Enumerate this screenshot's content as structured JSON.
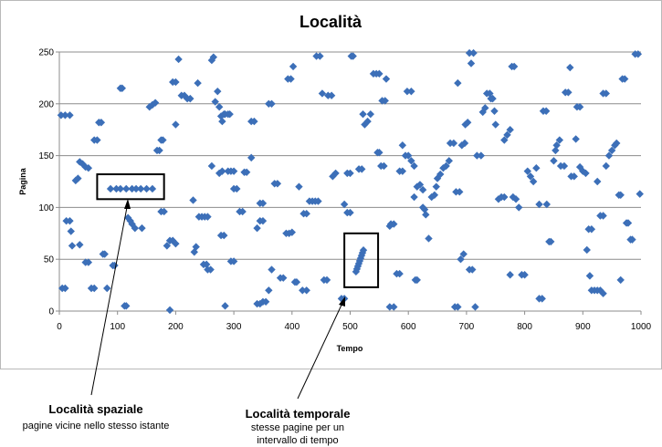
{
  "chart_data": {
    "type": "scatter",
    "title": "Località",
    "xlabel": "Tempo",
    "ylabel": "Pagina",
    "xlim": [
      0,
      1000
    ],
    "ylim": [
      0,
      250
    ],
    "xticks": [
      0,
      100,
      200,
      300,
      400,
      500,
      600,
      700,
      800,
      900,
      1000
    ],
    "yticks": [
      0,
      50,
      100,
      150,
      200,
      250
    ],
    "grid": "horizontal",
    "marker": "diamond",
    "color": "#3c6fb8",
    "points": [
      [
        3,
        189
      ],
      [
        10,
        189
      ],
      [
        18,
        189
      ],
      [
        5,
        22
      ],
      [
        10,
        22
      ],
      [
        12,
        87
      ],
      [
        18,
        87
      ],
      [
        20,
        77
      ],
      [
        22,
        63
      ],
      [
        28,
        126
      ],
      [
        32,
        128
      ],
      [
        35,
        144
      ],
      [
        40,
        142
      ],
      [
        45,
        139
      ],
      [
        50,
        138
      ],
      [
        35,
        64
      ],
      [
        45,
        47
      ],
      [
        50,
        47
      ],
      [
        55,
        22
      ],
      [
        60,
        22
      ],
      [
        60,
        165
      ],
      [
        65,
        165
      ],
      [
        68,
        182
      ],
      [
        72,
        182
      ],
      [
        75,
        55
      ],
      [
        78,
        55
      ],
      [
        82,
        22
      ],
      [
        88,
        118
      ],
      [
        98,
        118
      ],
      [
        105,
        118
      ],
      [
        115,
        118
      ],
      [
        125,
        118
      ],
      [
        132,
        118
      ],
      [
        140,
        118
      ],
      [
        150,
        118
      ],
      [
        160,
        118
      ],
      [
        105,
        215
      ],
      [
        108,
        215
      ],
      [
        112,
        5
      ],
      [
        115,
        5
      ],
      [
        118,
        90
      ],
      [
        122,
        87
      ],
      [
        125,
        84
      ],
      [
        130,
        80
      ],
      [
        95,
        44
      ],
      [
        92,
        44
      ],
      [
        142,
        80
      ],
      [
        155,
        197
      ],
      [
        160,
        199
      ],
      [
        165,
        201
      ],
      [
        168,
        155
      ],
      [
        172,
        155
      ],
      [
        175,
        165
      ],
      [
        178,
        165
      ],
      [
        175,
        96
      ],
      [
        180,
        96
      ],
      [
        185,
        63
      ],
      [
        190,
        68
      ],
      [
        195,
        68
      ],
      [
        200,
        65
      ],
      [
        190,
        1
      ],
      [
        195,
        221
      ],
      [
        200,
        221
      ],
      [
        205,
        243
      ],
      [
        200,
        180
      ],
      [
        210,
        208
      ],
      [
        215,
        208
      ],
      [
        220,
        205
      ],
      [
        225,
        205
      ],
      [
        230,
        107
      ],
      [
        232,
        57
      ],
      [
        235,
        62
      ],
      [
        238,
        220
      ],
      [
        240,
        91
      ],
      [
        245,
        91
      ],
      [
        250,
        91
      ],
      [
        255,
        91
      ],
      [
        248,
        45
      ],
      [
        253,
        45
      ],
      [
        255,
        40
      ],
      [
        260,
        40
      ],
      [
        262,
        242
      ],
      [
        265,
        245
      ],
      [
        262,
        140
      ],
      [
        268,
        202
      ],
      [
        272,
        212
      ],
      [
        275,
        197
      ],
      [
        278,
        188
      ],
      [
        280,
        183
      ],
      [
        283,
        190
      ],
      [
        285,
        190
      ],
      [
        290,
        190
      ],
      [
        293,
        190
      ],
      [
        275,
        133
      ],
      [
        280,
        135
      ],
      [
        290,
        135
      ],
      [
        295,
        135
      ],
      [
        300,
        135
      ],
      [
        278,
        73
      ],
      [
        283,
        73
      ],
      [
        285,
        5
      ],
      [
        295,
        48
      ],
      [
        300,
        48
      ],
      [
        300,
        118
      ],
      [
        305,
        118
      ],
      [
        310,
        96
      ],
      [
        315,
        96
      ],
      [
        318,
        134
      ],
      [
        322,
        134
      ],
      [
        330,
        148
      ],
      [
        330,
        183
      ],
      [
        335,
        183
      ],
      [
        340,
        80
      ],
      [
        345,
        87
      ],
      [
        350,
        87
      ],
      [
        345,
        104
      ],
      [
        350,
        104
      ],
      [
        340,
        7
      ],
      [
        345,
        7
      ],
      [
        350,
        9
      ],
      [
        355,
        9
      ],
      [
        360,
        20
      ],
      [
        360,
        200
      ],
      [
        365,
        200
      ],
      [
        370,
        123
      ],
      [
        375,
        123
      ],
      [
        365,
        40
      ],
      [
        380,
        32
      ],
      [
        385,
        32
      ],
      [
        390,
        75
      ],
      [
        395,
        75
      ],
      [
        400,
        76
      ],
      [
        393,
        224
      ],
      [
        398,
        224
      ],
      [
        402,
        236
      ],
      [
        405,
        28
      ],
      [
        408,
        28
      ],
      [
        412,
        120
      ],
      [
        418,
        20
      ],
      [
        425,
        20
      ],
      [
        420,
        94
      ],
      [
        425,
        94
      ],
      [
        430,
        106
      ],
      [
        435,
        106
      ],
      [
        440,
        106
      ],
      [
        445,
        106
      ],
      [
        442,
        246
      ],
      [
        448,
        246
      ],
      [
        452,
        210
      ],
      [
        455,
        30
      ],
      [
        460,
        30
      ],
      [
        462,
        208
      ],
      [
        468,
        208
      ],
      [
        470,
        130
      ],
      [
        475,
        133
      ],
      [
        485,
        12
      ],
      [
        490,
        12
      ],
      [
        495,
        95
      ],
      [
        500,
        95
      ],
      [
        490,
        103
      ],
      [
        495,
        133
      ],
      [
        500,
        133
      ],
      [
        502,
        246
      ],
      [
        505,
        246
      ],
      [
        515,
        137
      ],
      [
        520,
        137
      ],
      [
        522,
        190
      ],
      [
        525,
        180
      ],
      [
        530,
        183
      ],
      [
        535,
        190
      ],
      [
        540,
        229
      ],
      [
        545,
        229
      ],
      [
        550,
        229
      ],
      [
        547,
        153
      ],
      [
        550,
        153
      ],
      [
        553,
        140
      ],
      [
        558,
        140
      ],
      [
        555,
        203
      ],
      [
        560,
        203
      ],
      [
        562,
        224
      ],
      [
        568,
        82
      ],
      [
        570,
        84
      ],
      [
        575,
        84
      ],
      [
        580,
        36
      ],
      [
        585,
        36
      ],
      [
        568,
        4
      ],
      [
        575,
        4
      ],
      [
        585,
        135
      ],
      [
        590,
        135
      ],
      [
        590,
        160
      ],
      [
        595,
        150
      ],
      [
        600,
        150
      ],
      [
        605,
        145
      ],
      [
        610,
        140
      ],
      [
        612,
        30
      ],
      [
        615,
        30
      ],
      [
        598,
        212
      ],
      [
        605,
        212
      ],
      [
        610,
        110
      ],
      [
        615,
        120
      ],
      [
        620,
        122
      ],
      [
        625,
        117
      ],
      [
        625,
        100
      ],
      [
        628,
        98
      ],
      [
        630,
        93
      ],
      [
        635,
        70
      ],
      [
        640,
        110
      ],
      [
        645,
        112
      ],
      [
        648,
        120
      ],
      [
        650,
        128
      ],
      [
        655,
        132
      ],
      [
        660,
        138
      ],
      [
        665,
        140
      ],
      [
        670,
        145
      ],
      [
        672,
        162
      ],
      [
        678,
        162
      ],
      [
        682,
        115
      ],
      [
        688,
        115
      ],
      [
        685,
        220
      ],
      [
        690,
        50
      ],
      [
        695,
        55
      ],
      [
        680,
        4
      ],
      [
        685,
        4
      ],
      [
        692,
        160
      ],
      [
        697,
        162
      ],
      [
        698,
        180
      ],
      [
        702,
        182
      ],
      [
        705,
        249
      ],
      [
        712,
        249
      ],
      [
        708,
        239
      ],
      [
        705,
        40
      ],
      [
        710,
        40
      ],
      [
        715,
        4
      ],
      [
        718,
        150
      ],
      [
        725,
        150
      ],
      [
        728,
        192
      ],
      [
        732,
        196
      ],
      [
        735,
        210
      ],
      [
        740,
        210
      ],
      [
        742,
        205
      ],
      [
        745,
        205
      ],
      [
        748,
        193
      ],
      [
        750,
        180
      ],
      [
        755,
        108
      ],
      [
        760,
        110
      ],
      [
        765,
        110
      ],
      [
        765,
        165
      ],
      [
        770,
        170
      ],
      [
        775,
        175
      ],
      [
        778,
        236
      ],
      [
        782,
        236
      ],
      [
        775,
        35
      ],
      [
        780,
        110
      ],
      [
        785,
        108
      ],
      [
        790,
        100
      ],
      [
        795,
        35
      ],
      [
        800,
        35
      ],
      [
        805,
        135
      ],
      [
        810,
        130
      ],
      [
        815,
        125
      ],
      [
        820,
        138
      ],
      [
        825,
        103
      ],
      [
        825,
        12
      ],
      [
        830,
        12
      ],
      [
        832,
        193
      ],
      [
        837,
        193
      ],
      [
        838,
        103
      ],
      [
        842,
        67
      ],
      [
        845,
        67
      ],
      [
        850,
        145
      ],
      [
        853,
        155
      ],
      [
        855,
        160
      ],
      [
        860,
        165
      ],
      [
        862,
        140
      ],
      [
        868,
        140
      ],
      [
        870,
        211
      ],
      [
        875,
        211
      ],
      [
        878,
        235
      ],
      [
        880,
        130
      ],
      [
        885,
        130
      ],
      [
        888,
        166
      ],
      [
        890,
        197
      ],
      [
        895,
        197
      ],
      [
        895,
        139
      ],
      [
        900,
        135
      ],
      [
        905,
        133
      ],
      [
        907,
        59
      ],
      [
        910,
        79
      ],
      [
        915,
        79
      ],
      [
        912,
        34
      ],
      [
        915,
        20
      ],
      [
        920,
        20
      ],
      [
        925,
        20
      ],
      [
        930,
        20
      ],
      [
        935,
        17
      ],
      [
        935,
        210
      ],
      [
        940,
        210
      ],
      [
        925,
        125
      ],
      [
        930,
        92
      ],
      [
        935,
        92
      ],
      [
        940,
        140
      ],
      [
        945,
        150
      ],
      [
        950,
        155
      ],
      [
        955,
        160
      ],
      [
        958,
        162
      ],
      [
        962,
        112
      ],
      [
        965,
        112
      ],
      [
        965,
        30
      ],
      [
        968,
        224
      ],
      [
        972,
        224
      ],
      [
        975,
        85
      ],
      [
        978,
        85
      ],
      [
        982,
        69
      ],
      [
        985,
        69
      ],
      [
        990,
        248
      ],
      [
        995,
        248
      ],
      [
        998,
        113
      ]
    ],
    "highlight_boxes": [
      {
        "x": [
          65,
          180
        ],
        "y": [
          108,
          132
        ]
      },
      {
        "x": [
          490,
          548
        ],
        "y": [
          23,
          75
        ]
      }
    ]
  },
  "annotations": {
    "spatial": {
      "title": "Località spaziale",
      "subtitle": "pagine vicine nello stesso istante"
    },
    "temporal": {
      "title": "Località temporale",
      "subtitle": "stesse pagine per un intervallo di tempo"
    }
  }
}
